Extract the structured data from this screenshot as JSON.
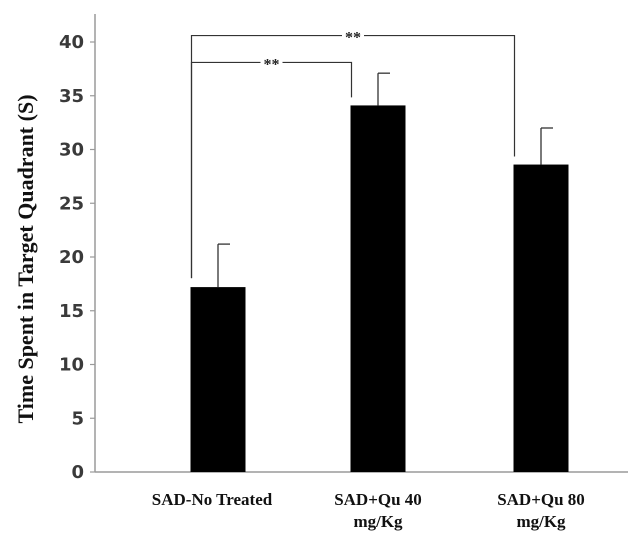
{
  "chart_data": {
    "type": "bar",
    "title": "",
    "xlabel": "",
    "ylabel": "Time Spent in Target Quadrant (S)",
    "ylim": [
      0,
      40
    ],
    "yticks": [
      "0",
      "5",
      "10",
      "15",
      "20",
      "25",
      "30",
      "35",
      "40"
    ],
    "grid": false,
    "categories": [
      {
        "line1": "SAD-No Treated",
        "line2": ""
      },
      {
        "line1": "SAD+Qu 40",
        "line2": "mg/Kg"
      },
      {
        "line1": "SAD+Qu  80",
        "line2": "mg/Kg"
      }
    ],
    "values": [
      17.2,
      34.1,
      28.6
    ],
    "error_upper": [
      21.2,
      37.1,
      32.0
    ],
    "significance": [
      {
        "from": 0,
        "to": 1,
        "label": "**",
        "level": 38.1
      },
      {
        "from": 0,
        "to": 2,
        "label": "**",
        "level": 40.6
      }
    ],
    "bar_color": "#000000"
  }
}
